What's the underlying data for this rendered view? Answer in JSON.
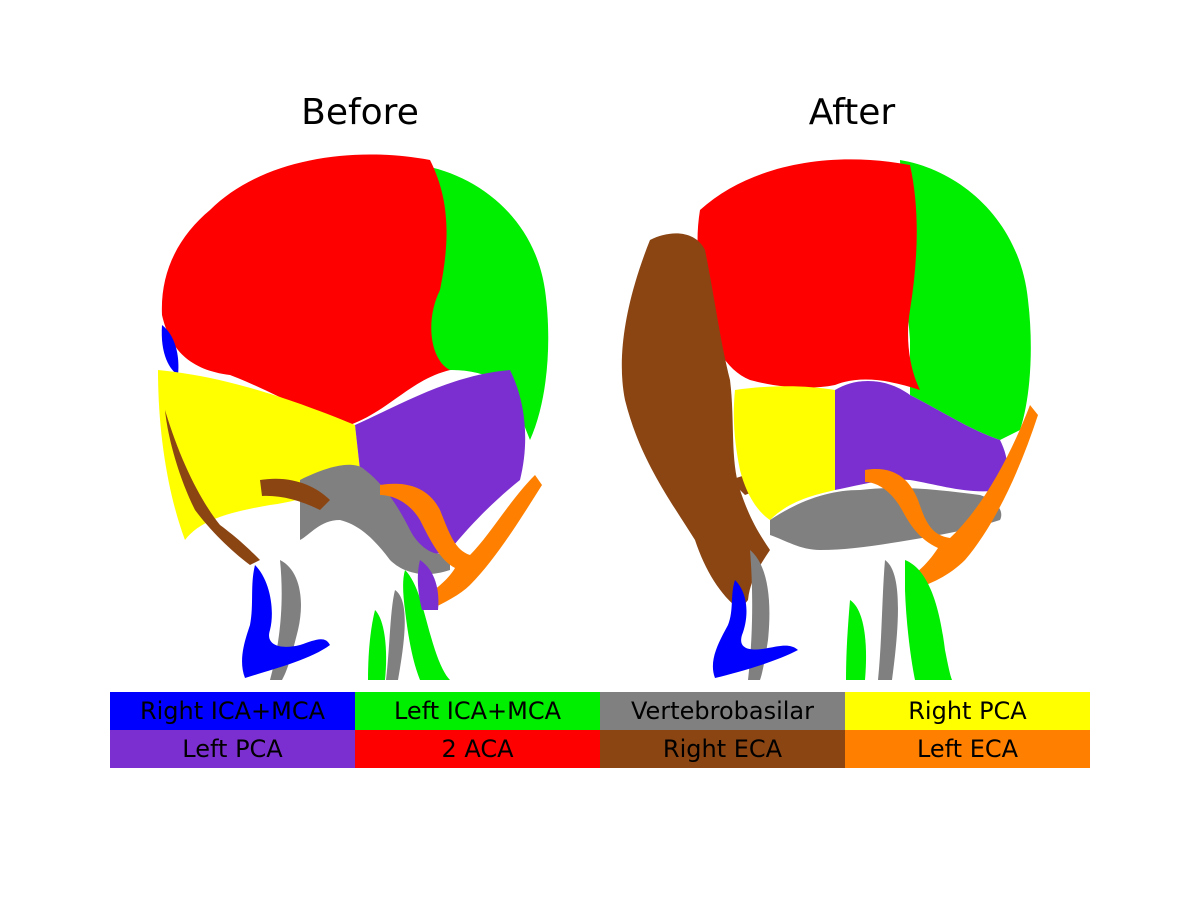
{
  "panels": {
    "before": "Before",
    "after": "After"
  },
  "legend": [
    {
      "label": "Right ICA+MCA",
      "color": "#0000ff"
    },
    {
      "label": "Left ICA+MCA",
      "color": "#00ee00"
    },
    {
      "label": "Vertebrobasilar",
      "color": "#808080"
    },
    {
      "label": "Right PCA",
      "color": "#ffff00"
    },
    {
      "label": "Left PCA",
      "color": "#7b2fd0"
    },
    {
      "label": "2 ACA",
      "color": "#ff0000"
    },
    {
      "label": "Right ECA",
      "color": "#8b4513"
    },
    {
      "label": "Left ECA",
      "color": "#ff8000"
    }
  ]
}
